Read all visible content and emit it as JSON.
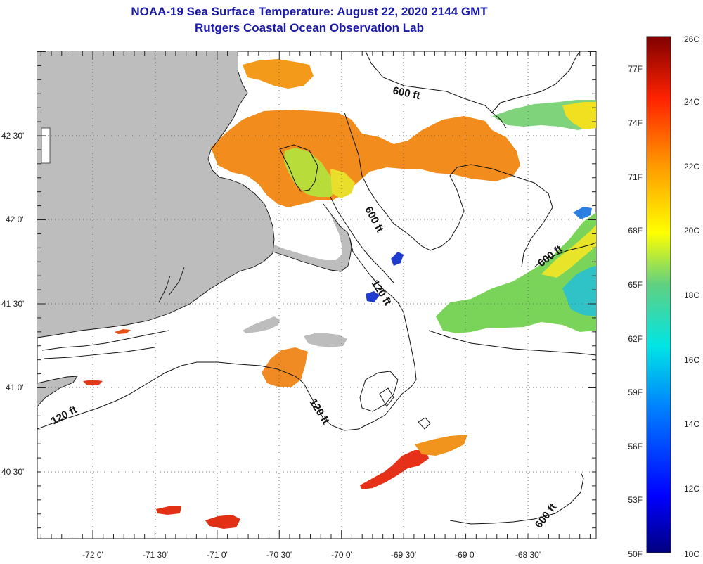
{
  "title": "NOAA-19 Sea Surface Temperature:  August 22, 2020 2144 GMT",
  "subtitle": "Rutgers Coastal Ocean Observation Lab",
  "lat_labels": [
    "42 30'",
    "42 0'",
    "41 30'",
    "41 0'",
    "40 30'"
  ],
  "lon_labels": [
    "-72 0'",
    "-71 30'",
    "-71 0'",
    "-70 30'",
    "-70 0'",
    "-69 30'",
    "-69 0'",
    "-68 30'"
  ],
  "depth_labels": [
    "600 ft",
    "600 ft",
    "600 ft",
    "600 ft",
    "120 ft",
    "120 ft",
    "120 ft"
  ],
  "colorbar": {
    "fahrenheit": [
      "77F",
      "74F",
      "71F",
      "68F",
      "65F",
      "62F",
      "59F",
      "56F",
      "53F",
      "50F"
    ],
    "celsius": [
      "26C",
      "24C",
      "22C",
      "20C",
      "18C",
      "16C",
      "14C",
      "12C",
      "10C"
    ]
  }
}
